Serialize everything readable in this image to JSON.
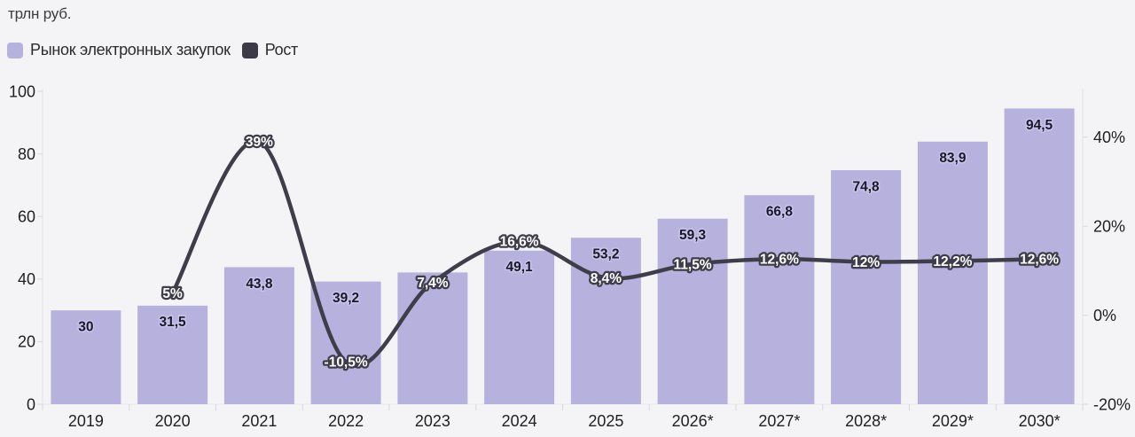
{
  "title": "трлн руб.",
  "legend": [
    {
      "label": "Рынок электронных закупок",
      "color": "#b7b1de"
    },
    {
      "label": "Рост",
      "color": "#3b3a46"
    }
  ],
  "chart_data": {
    "type": "bar+line combo",
    "title": "трлн руб.",
    "categories": [
      "2019",
      "2020",
      "2021",
      "2022",
      "2023",
      "2024",
      "2025",
      "2026*",
      "2027*",
      "2028*",
      "2029*",
      "2030*"
    ],
    "series": [
      {
        "name": "Рынок электронных закупок",
        "type": "bar",
        "axis": "left",
        "color": "#b7b1de",
        "values": [
          30,
          31.5,
          43.8,
          39.2,
          42.1,
          49.1,
          53.2,
          59.3,
          66.8,
          74.8,
          83.9,
          94.5
        ],
        "labels": [
          "30",
          "31,5",
          "43,8",
          "39,2",
          null,
          "49,1",
          "53,2",
          "59,3",
          "66,8",
          "74,8",
          "83,9",
          "94,5"
        ]
      },
      {
        "name": "Рост",
        "type": "line",
        "axis": "right",
        "color": "#3f3d49",
        "values": [
          null,
          5,
          39,
          -10.5,
          7.4,
          16.6,
          8.4,
          11.5,
          12.6,
          12,
          12.2,
          12.6
        ],
        "labels": [
          null,
          "5%",
          "39%",
          "-10,5%",
          "7,4%",
          "16,6%",
          "8,4%",
          "11,5%",
          "12,6%",
          "12%",
          "12,2%",
          "12,6%"
        ]
      }
    ],
    "left_axis": {
      "tick_labels": [
        "0",
        "20",
        "40",
        "60",
        "80",
        "100"
      ],
      "tick_values": [
        0,
        20,
        40,
        60,
        80,
        100
      ],
      "range": [
        0,
        100
      ]
    },
    "right_axis": {
      "tick_labels": [
        "-20%",
        "0%",
        "20%",
        "40%"
      ],
      "tick_values": [
        -20,
        0,
        20,
        40
      ],
      "range": [
        -20,
        50
      ]
    },
    "grid": false,
    "legend_position": "top-left",
    "bar_label_color": "#191929",
    "line_label_color": "#ffffff",
    "axis_text_color": "#1f1f1f",
    "axis_line_color": "#dfdfe3"
  }
}
